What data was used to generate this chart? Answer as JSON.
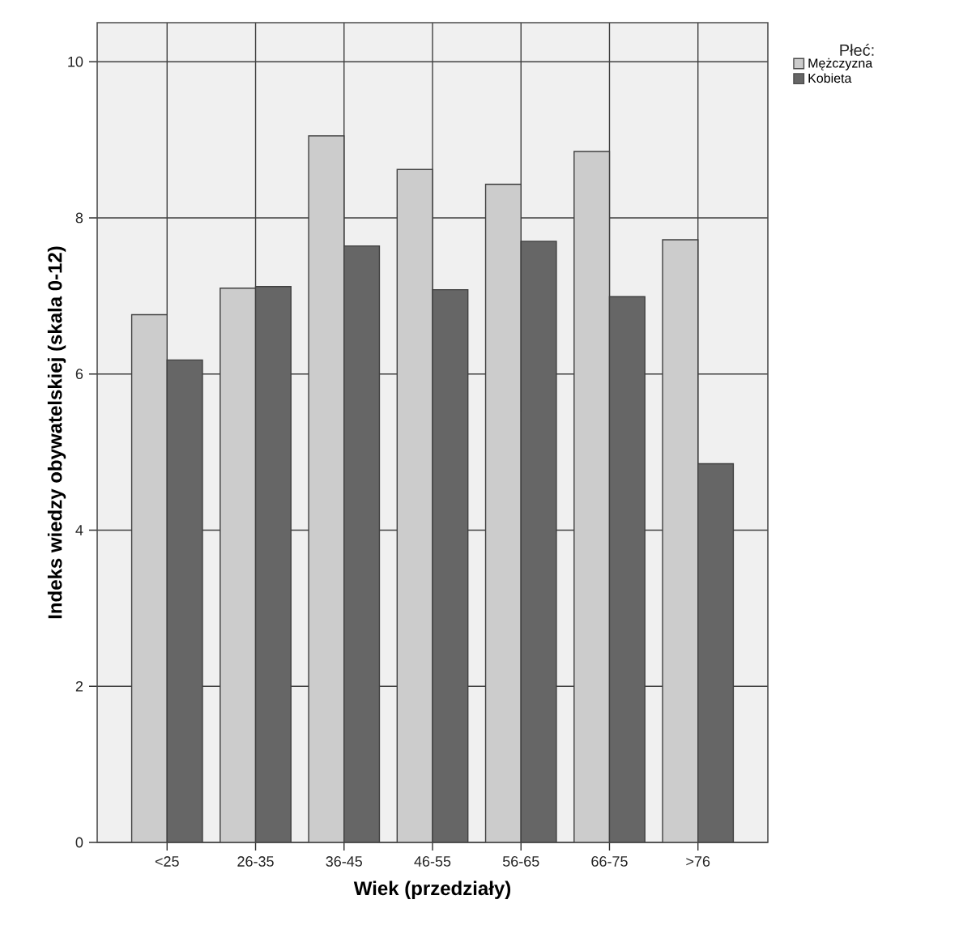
{
  "chart_data": {
    "type": "bar",
    "xlabel": "Wiek (przedziały)",
    "ylabel": "Indeks wiedzy obywatelskiej (skala 0-12)",
    "legend_title": "Płeć:",
    "categories": [
      "<25",
      "26-35",
      "36-45",
      "46-55",
      "56-65",
      "66-75",
      ">76"
    ],
    "series": [
      {
        "name": "Mężczyzna",
        "color": "#cccccc",
        "values": [
          6.76,
          7.1,
          9.05,
          8.62,
          8.43,
          8.85,
          7.72
        ]
      },
      {
        "name": "Kobieta",
        "color": "#666666",
        "values": [
          6.18,
          7.12,
          7.64,
          7.08,
          7.7,
          6.99,
          4.85
        ]
      }
    ],
    "ylim": [
      0,
      10.5
    ],
    "yticks": [
      0,
      2,
      4,
      6,
      8,
      10
    ],
    "grid": true,
    "legend": "top right"
  }
}
